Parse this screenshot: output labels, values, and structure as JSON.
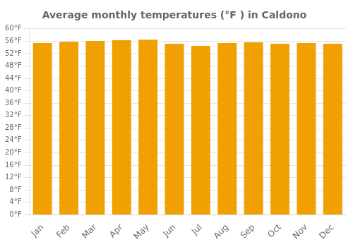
{
  "chart_data": {
    "type": "bar",
    "title": "Average monthly temperatures (°F ) in Caldono",
    "categories": [
      "Jan",
      "Feb",
      "Mar",
      "Apr",
      "May",
      "Jun",
      "Jul",
      "Aug",
      "Sep",
      "Oct",
      "Nov",
      "Dec"
    ],
    "values": [
      55.4,
      55.8,
      56.1,
      56.3,
      56.5,
      55.2,
      54.5,
      55.4,
      55.6,
      55.2,
      55.4,
      55.2
    ],
    "color": "#F0A000",
    "ylim": [
      0,
      60
    ],
    "yticks": [
      {
        "value": 0,
        "label": "0°F"
      },
      {
        "value": 4,
        "label": "4°F"
      },
      {
        "value": 8,
        "label": "8°F"
      },
      {
        "value": 12,
        "label": "12°F"
      },
      {
        "value": 16,
        "label": "16°F"
      },
      {
        "value": 20,
        "label": "20°F"
      },
      {
        "value": 24,
        "label": "24°F"
      },
      {
        "value": 28,
        "label": "28°F"
      },
      {
        "value": 32,
        "label": "32°F"
      },
      {
        "value": 36,
        "label": "36°F"
      },
      {
        "value": 40,
        "label": "40°F"
      },
      {
        "value": 44,
        "label": "44°F"
      },
      {
        "value": 48,
        "label": "48°F"
      },
      {
        "value": 52,
        "label": "52°F"
      },
      {
        "value": 56,
        "label": "56°F"
      },
      {
        "value": 60,
        "label": "60°F"
      }
    ],
    "grid": true
  }
}
